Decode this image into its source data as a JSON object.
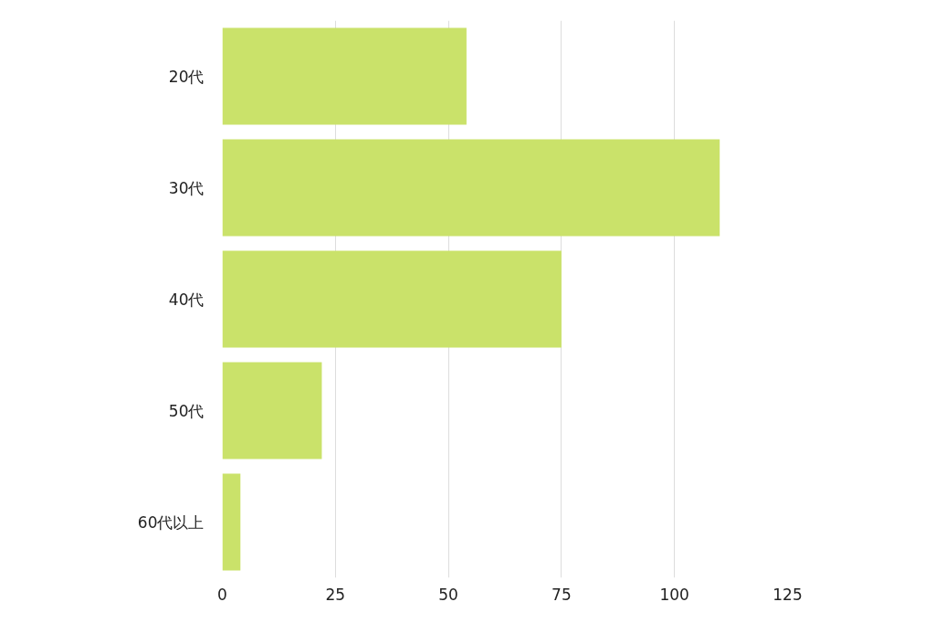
{
  "chart_data": {
    "type": "bar",
    "orientation": "horizontal",
    "categories": [
      "20代",
      "30代",
      "40代",
      "50代",
      "60代以上"
    ],
    "values": [
      54,
      110,
      75,
      22,
      4
    ],
    "color": "#cae26a",
    "xlim": [
      0,
      125
    ],
    "xticks": [
      0,
      25,
      50,
      75,
      100,
      125
    ],
    "grid": "x"
  }
}
